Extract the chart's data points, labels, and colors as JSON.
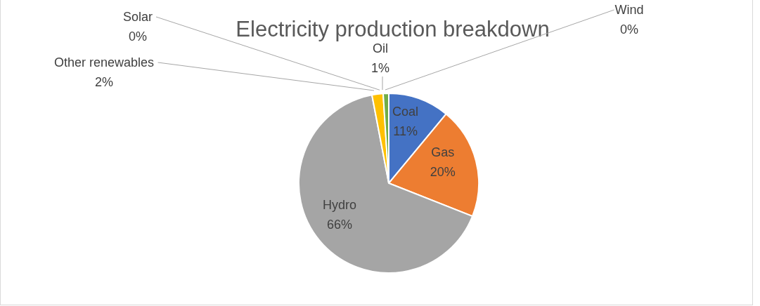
{
  "chart_data": {
    "type": "pie",
    "title": "Electricity production breakdown",
    "categories": [
      "Coal",
      "Gas",
      "Hydro",
      "Other renewables",
      "Solar",
      "Oil",
      "Wind"
    ],
    "values": [
      11,
      20,
      66,
      2,
      0,
      1,
      0
    ],
    "colors": [
      "#4472c4",
      "#ed7d31",
      "#a5a5a5",
      "#ffc000",
      "#5b9bd5",
      "#70ad47",
      "#264478"
    ],
    "value_labels": [
      "11%",
      "20%",
      "66%",
      "2%",
      "0%",
      "1%",
      "0%"
    ]
  }
}
